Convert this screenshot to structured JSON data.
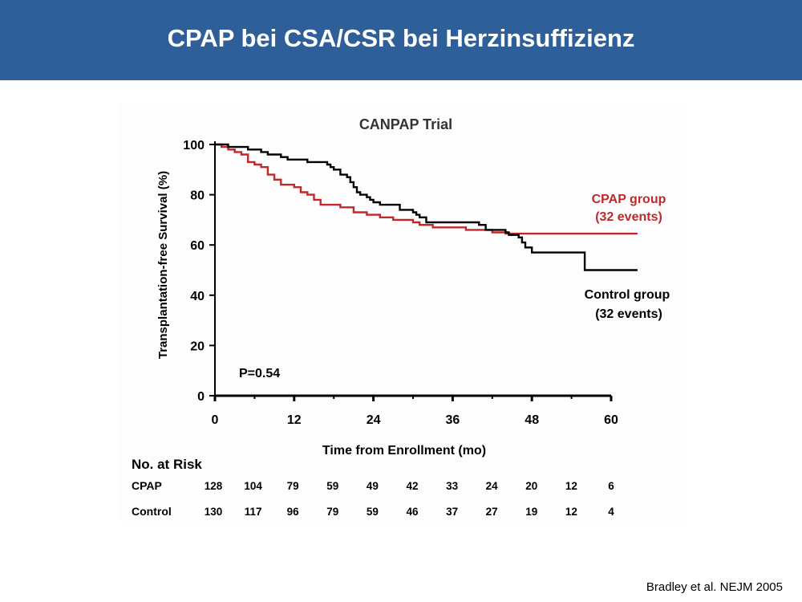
{
  "slide": {
    "title": "CPAP bei CSA/CSR bei Herzinsuffizienz",
    "citation": "Bradley et al. NEJM 2005"
  },
  "colors": {
    "banner": "#2f5f98",
    "cpap": "#c0282a",
    "control": "#000000"
  },
  "chart_data": {
    "type": "line",
    "title": "CANPAP Trial",
    "xlabel": "Time from Enrollment (mo)",
    "ylabel": "Transplantation-free Survival (%)",
    "xlim": [
      0,
      60
    ],
    "ylim": [
      0,
      100
    ],
    "xticks": [
      0,
      12,
      24,
      36,
      48,
      60
    ],
    "yticks": [
      0,
      20,
      40,
      60,
      80,
      100
    ],
    "grid": false,
    "p_value": "P=0.54",
    "series": [
      {
        "name": "CPAP group",
        "label_line1": "CPAP group",
        "label_line2": "(32 events)",
        "color": "#c0282a",
        "step": true,
        "points": [
          [
            0,
            100
          ],
          [
            1,
            99
          ],
          [
            2,
            98
          ],
          [
            3,
            97
          ],
          [
            4,
            96
          ],
          [
            5,
            93
          ],
          [
            6,
            92
          ],
          [
            7,
            91
          ],
          [
            8,
            88
          ],
          [
            9,
            86
          ],
          [
            10,
            84
          ],
          [
            12,
            83
          ],
          [
            13,
            81
          ],
          [
            14,
            80
          ],
          [
            15,
            78
          ],
          [
            16,
            76
          ],
          [
            19,
            75
          ],
          [
            21,
            73
          ],
          [
            23,
            72
          ],
          [
            25,
            71
          ],
          [
            27,
            70
          ],
          [
            30,
            69
          ],
          [
            31,
            68
          ],
          [
            33,
            67
          ],
          [
            38,
            66
          ],
          [
            42,
            65
          ],
          [
            44,
            64.5
          ],
          [
            64,
            64.5
          ]
        ]
      },
      {
        "name": "Control group",
        "label_line1": "Control group",
        "label_line2": "(32 events)",
        "color": "#000000",
        "step": true,
        "points": [
          [
            0,
            100
          ],
          [
            2,
            99
          ],
          [
            5,
            98
          ],
          [
            7,
            97
          ],
          [
            8,
            96
          ],
          [
            10,
            95
          ],
          [
            11,
            94
          ],
          [
            14,
            93
          ],
          [
            17,
            92
          ],
          [
            17.5,
            91
          ],
          [
            18,
            90
          ],
          [
            19,
            88
          ],
          [
            20,
            87
          ],
          [
            20.5,
            85
          ],
          [
            21,
            83
          ],
          [
            21.5,
            81
          ],
          [
            22,
            80
          ],
          [
            23,
            79
          ],
          [
            23.5,
            78
          ],
          [
            24,
            77
          ],
          [
            25,
            76
          ],
          [
            28,
            74
          ],
          [
            30,
            73
          ],
          [
            30.5,
            72
          ],
          [
            31,
            71
          ],
          [
            32,
            69
          ],
          [
            40,
            68
          ],
          [
            41,
            66
          ],
          [
            44,
            65
          ],
          [
            44.5,
            64
          ],
          [
            46,
            63
          ],
          [
            46.5,
            61
          ],
          [
            47,
            59
          ],
          [
            48,
            57
          ],
          [
            56,
            50
          ],
          [
            64,
            50
          ]
        ]
      }
    ],
    "risk_table": {
      "heading": "No. at Risk",
      "rows": [
        {
          "label": "CPAP",
          "values": [
            "128",
            "104",
            "79",
            "59",
            "49",
            "42",
            "33",
            "24",
            "20",
            "12",
            "6"
          ]
        },
        {
          "label": "Control",
          "values": [
            "130",
            "117",
            "96",
            "79",
            "59",
            "46",
            "37",
            "27",
            "19",
            "12",
            "4"
          ]
        }
      ]
    }
  }
}
